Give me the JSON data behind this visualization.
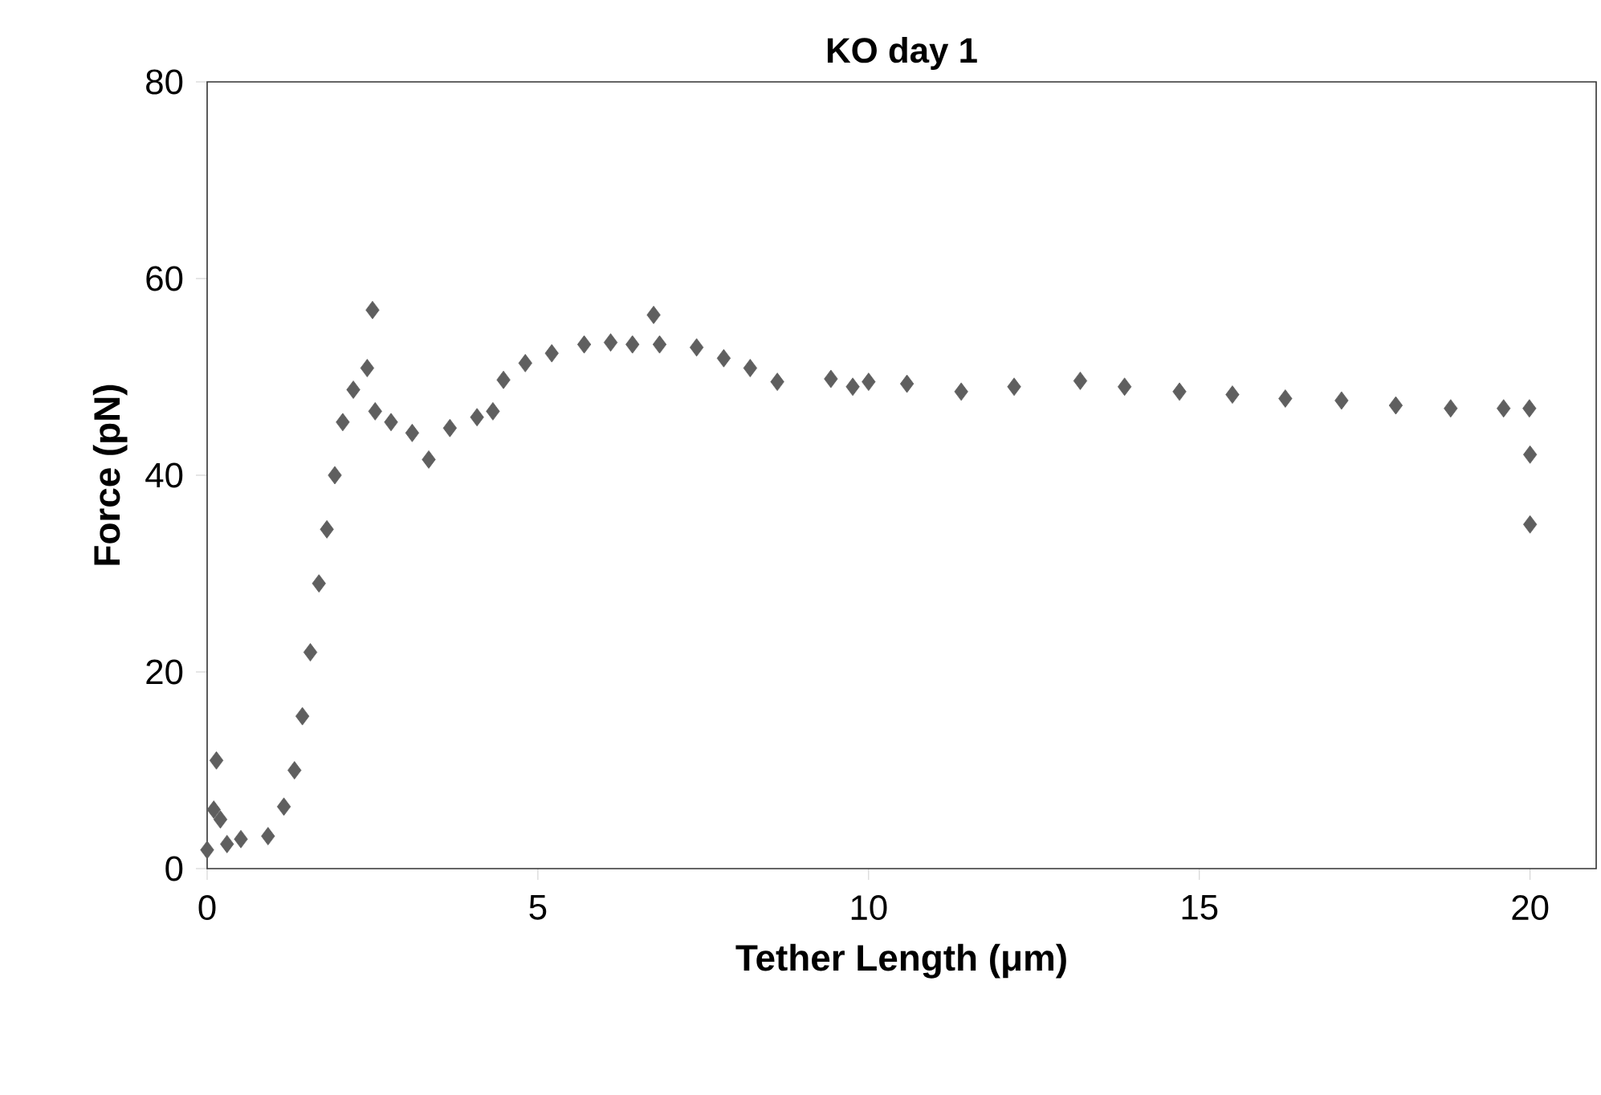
{
  "chart_data": {
    "type": "scatter",
    "title": "KO day 1",
    "xlabel": "Tether Length (μm)",
    "ylabel": "Force (pN)",
    "x": [
      0.0,
      0.1,
      0.14,
      0.2,
      0.3,
      0.51,
      0.92,
      1.16,
      1.32,
      1.44,
      1.56,
      1.69,
      1.81,
      1.93,
      2.05,
      2.21,
      2.42,
      2.5,
      2.54,
      2.78,
      3.1,
      3.35,
      3.67,
      4.08,
      4.32,
      4.48,
      4.81,
      5.21,
      5.7,
      6.1,
      6.43,
      6.75,
      6.84,
      7.4,
      7.81,
      8.21,
      8.62,
      9.43,
      9.76,
      10.0,
      10.58,
      11.4,
      12.2,
      13.2,
      13.87,
      14.7,
      15.5,
      16.3,
      17.15,
      17.97,
      18.8,
      19.6,
      19.99,
      20.0,
      20.0
    ],
    "series": [
      {
        "color": "#5f5f5f",
        "values": [
          1.9,
          6,
          11,
          5,
          2.5,
          3.0,
          3.3,
          6.3,
          10,
          15.5,
          22,
          29,
          34.5,
          40,
          45.4,
          48.7,
          50.9,
          56.8,
          46.5,
          45.4,
          44.3,
          41.6,
          44.8,
          45.9,
          46.5,
          49.7,
          51.4,
          52.4,
          53.3,
          53.5,
          53.3,
          56.3,
          53.3,
          53.0,
          51.9,
          50.9,
          49.5,
          49.8,
          49.0,
          49.5,
          49.3,
          48.5,
          49.0,
          49.6,
          49.0,
          48.5,
          48.2,
          47.8,
          47.6,
          47.1,
          46.8,
          46.8,
          46.8,
          42.1,
          35.0
        ]
      }
    ],
    "marker": "diamond",
    "xlim": [
      0,
      21
    ],
    "ylim": [
      0,
      80
    ],
    "xticks": [
      0,
      5,
      10,
      15,
      20
    ],
    "yticks": [
      0,
      20,
      40,
      60,
      80
    ]
  }
}
